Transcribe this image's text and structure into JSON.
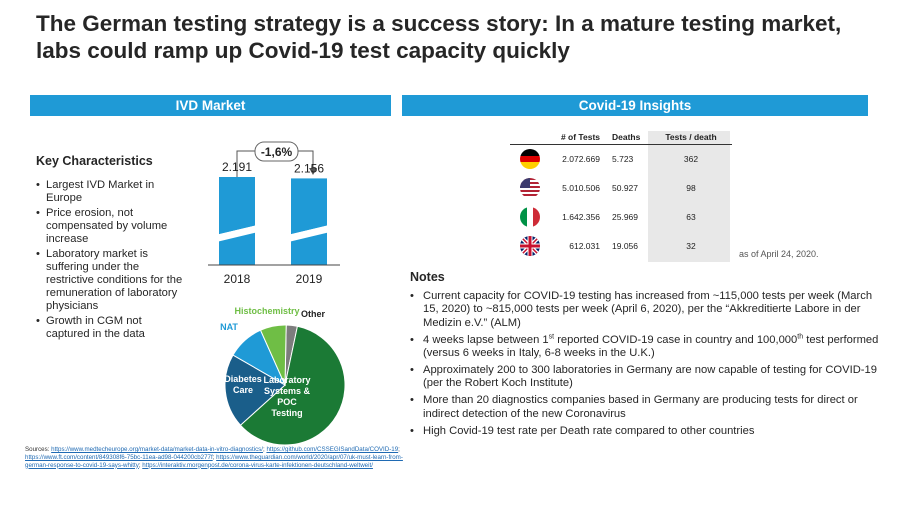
{
  "title": "The German testing strategy is a success story: In a mature testing market, labs could ramp up Covid-19 test capacity quickly",
  "banners": {
    "ivd": "IVD Market",
    "covid": "Covid-19 Insights"
  },
  "key_characteristics": {
    "title": "Key Characteristics",
    "items": [
      "Largest IVD Market in Europe",
      "Price erosion, not compensated by volume increase",
      "Laboratory market is suffering under the restrictive conditions for the remuneration of laboratory physicians",
      "Growth in CGM not captured in the data"
    ]
  },
  "chart_data": [
    {
      "type": "bar",
      "categories": [
        "2018",
        "2019"
      ],
      "values": [
        2191,
        2156
      ],
      "value_labels": [
        "2.191",
        "2.156"
      ],
      "change_label": "-1,6%",
      "axis_break": true,
      "color": "#1f9ad6"
    },
    {
      "type": "pie",
      "slices": [
        {
          "label": "Laboratory Systems & POC Testing",
          "value": 60,
          "color": "#1b7a35"
        },
        {
          "label": "Diabetes Care",
          "value": 20,
          "color": "#1a5e8a"
        },
        {
          "label": "NAT",
          "value": 10,
          "color": "#1f9ad6"
        },
        {
          "label": "Histochemistry",
          "value": 7,
          "color": "#6fbe45"
        },
        {
          "label": "Other",
          "value": 3,
          "color": "#7d7d7d"
        }
      ]
    }
  ],
  "sources": {
    "label": "Sources: ",
    "links": [
      "https://www.medtecheurope.org/market-data/market-data-in-vitro-diagnostics/",
      "https://github.com/CSSEGISandData/COVID-19",
      "https://www.ft.com/content/849308f6-75bc-11ea-ad98-044200cb277f",
      "https://www.theguardian.com/world/2020/apr/07/uk-must-learn-from-german-response-to-covid-19-says-whitty",
      "https://interaktiv.morgenpost.de/corona-virus-karte-infektionen-deutschland-weltweit/"
    ]
  },
  "covid_table": {
    "headers": [
      "# of Tests",
      "Deaths",
      "Tests / death"
    ],
    "rows": [
      {
        "flag": "germany-flag-icon",
        "tests": "2.072.669",
        "deaths": "5.723",
        "ratio": "362"
      },
      {
        "flag": "usa-flag-icon",
        "tests": "5.010.506",
        "deaths": "50.927",
        "ratio": "98"
      },
      {
        "flag": "italy-flag-icon",
        "tests": "1.642.356",
        "deaths": "25.969",
        "ratio": "63"
      },
      {
        "flag": "uk-flag-icon",
        "tests": "612.031",
        "deaths": "19.056",
        "ratio": "32"
      }
    ],
    "as_of": "as of April 24, 2020."
  },
  "notes": {
    "title": "Notes",
    "items": [
      {
        "text": "Current capacity for COVID-19 testing has increased from ~115,000 tests per week (March 15, 2020) to ~815,000 tests per week (April 6, 2020), per the “Akkreditierte Labore in der Medizin e.V.” (ALM)"
      },
      {
        "pre": "4 weeks lapse between 1",
        "sup1": "st",
        "mid": " reported COVID-19 case in country and 100,000",
        "sup2": "th",
        "post": " test performed (versus 6 weeks in Italy, 6-8 weeks in the U.K.)"
      },
      {
        "text": "Approximately 200 to 300 laboratories in Germany are now capable of testing for COVID-19 (per the Robert Koch Institute)"
      },
      {
        "text": "More than 20 diagnostics companies based in Germany are producing tests for direct or indirect detection of the new Coronavirus"
      },
      {
        "text": "High Covid-19 test rate per Death rate compared to other countries"
      }
    ]
  },
  "colors": {
    "accent": "#1f9ad6",
    "lab": "#1b7a35",
    "diabetes": "#1a5e8a",
    "nat": "#1f9ad6",
    "histo": "#6fbe45",
    "other": "#7d7d7d",
    "table_bg": "#e8e8e8"
  }
}
